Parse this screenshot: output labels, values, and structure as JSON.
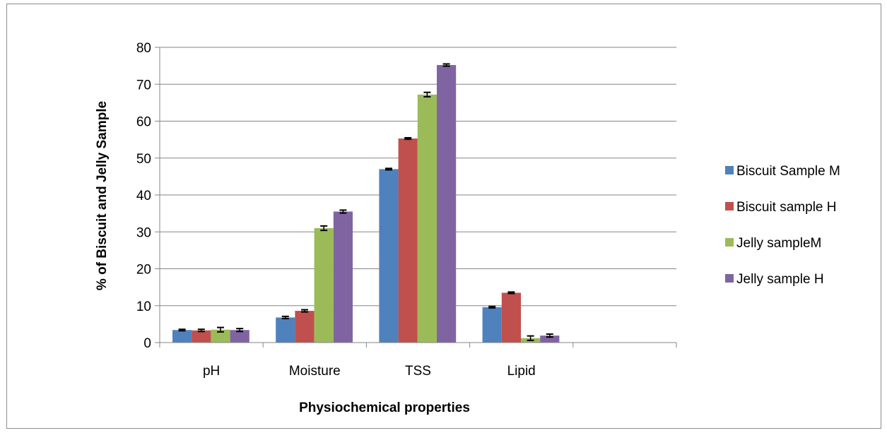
{
  "chart_data": {
    "type": "bar",
    "title": "",
    "xlabel": "Physiochemical properties",
    "ylabel": "% of Biscuit and Jelly  Sample",
    "categories": [
      "pH",
      "Moisture",
      "TSS",
      "Lipid",
      ""
    ],
    "ylim": [
      0,
      80
    ],
    "yticks": [
      0,
      10,
      20,
      30,
      40,
      50,
      60,
      70,
      80
    ],
    "grid": true,
    "legend_position": "right",
    "series": [
      {
        "name": "Biscuit Sample M",
        "color": "#4f81bd",
        "values": [
          3.4,
          6.8,
          47.0,
          9.6,
          null
        ],
        "errors": [
          0.2,
          0.3,
          0.2,
          0.2,
          null
        ]
      },
      {
        "name": "Biscuit sample H",
        "color": "#c0504d",
        "values": [
          3.3,
          8.6,
          55.3,
          13.5,
          null
        ],
        "errors": [
          0.3,
          0.3,
          0.2,
          0.2,
          null
        ]
      },
      {
        "name": "Jelly sampleM",
        "color": "#9bbb59",
        "values": [
          3.5,
          31.0,
          67.2,
          1.2,
          null
        ],
        "errors": [
          0.6,
          0.6,
          0.6,
          0.6,
          null
        ]
      },
      {
        "name": "Jelly sample H",
        "color": "#8064a2",
        "values": [
          3.4,
          35.5,
          75.2,
          1.9,
          null
        ],
        "errors": [
          0.4,
          0.4,
          0.3,
          0.4,
          null
        ]
      }
    ]
  }
}
